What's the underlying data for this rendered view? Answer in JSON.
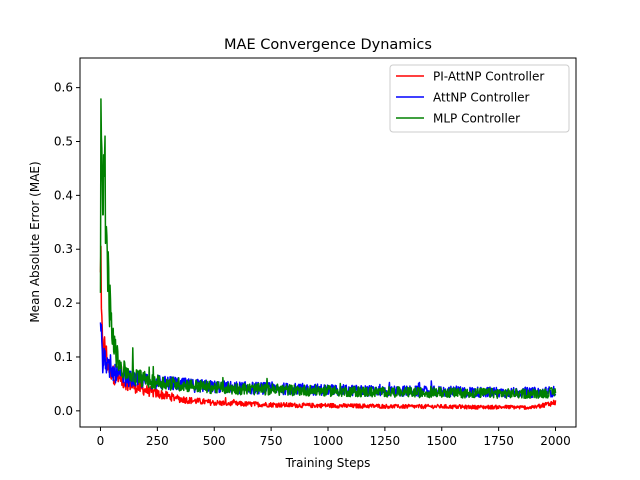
{
  "chart_data": {
    "type": "line",
    "title": "MAE Convergence Dynamics",
    "xlabel": "Training Steps",
    "ylabel": "Mean Absolute Error (MAE)",
    "xlim": [
      -90,
      2090
    ],
    "ylim": [
      -0.03,
      0.655
    ],
    "x_ticks": [
      0,
      250,
      500,
      750,
      1000,
      1250,
      1500,
      1750,
      2000
    ],
    "y_ticks": [
      0.0,
      0.1,
      0.2,
      0.3,
      0.4,
      0.5,
      0.6
    ],
    "x_tick_labels": [
      "0",
      "250",
      "500",
      "750",
      "1000",
      "1250",
      "1500",
      "1750",
      "2000"
    ],
    "y_tick_labels": [
      "0.0",
      "0.1",
      "0.2",
      "0.3",
      "0.4",
      "0.5",
      "0.6"
    ],
    "grid": false,
    "legend_position": "top-right",
    "series": [
      {
        "name": "PI-AttNP Controller",
        "color": "#ff0000",
        "x": [
          0,
          5,
          10,
          20,
          30,
          40,
          60,
          80,
          100,
          150,
          200,
          250,
          300,
          350,
          400,
          450,
          500,
          600,
          700,
          800,
          900,
          1000,
          1100,
          1200,
          1300,
          1400,
          1500,
          1600,
          1700,
          1800,
          1900,
          2000
        ],
        "y": [
          0.24,
          0.16,
          0.11,
          0.12,
          0.09,
          0.08,
          0.065,
          0.06,
          0.055,
          0.045,
          0.038,
          0.032,
          0.027,
          0.022,
          0.019,
          0.017,
          0.015,
          0.013,
          0.012,
          0.011,
          0.01,
          0.01,
          0.009,
          0.009,
          0.008,
          0.008,
          0.008,
          0.007,
          0.007,
          0.007,
          0.006,
          0.016
        ]
      },
      {
        "name": "AttNP Controller",
        "color": "#0000ff",
        "x": [
          0,
          5,
          10,
          20,
          30,
          40,
          60,
          80,
          100,
          150,
          200,
          250,
          300,
          350,
          400,
          450,
          500,
          600,
          700,
          800,
          900,
          1000,
          1100,
          1200,
          1300,
          1400,
          1500,
          1600,
          1700,
          1800,
          1900,
          2000
        ],
        "y": [
          0.2,
          0.12,
          0.085,
          0.1,
          0.08,
          0.075,
          0.07,
          0.065,
          0.062,
          0.058,
          0.055,
          0.053,
          0.051,
          0.049,
          0.047,
          0.046,
          0.045,
          0.043,
          0.042,
          0.041,
          0.04,
          0.039,
          0.038,
          0.037,
          0.037,
          0.036,
          0.036,
          0.035,
          0.035,
          0.034,
          0.034,
          0.036
        ]
      },
      {
        "name": "MLP Controller",
        "color": "#008000",
        "x": [
          0,
          3,
          6,
          10,
          15,
          20,
          25,
          30,
          40,
          50,
          60,
          80,
          100,
          150,
          200,
          250,
          300,
          350,
          400,
          450,
          500,
          600,
          700,
          800,
          900,
          1000,
          1100,
          1200,
          1300,
          1400,
          1500,
          1600,
          1700,
          1800,
          1900,
          2000
        ],
        "y": [
          0.2,
          0.62,
          0.5,
          0.45,
          0.4,
          0.44,
          0.33,
          0.28,
          0.2,
          0.15,
          0.12,
          0.09,
          0.075,
          0.065,
          0.058,
          0.054,
          0.051,
          0.049,
          0.047,
          0.045,
          0.043,
          0.041,
          0.04,
          0.039,
          0.038,
          0.037,
          0.036,
          0.035,
          0.035,
          0.034,
          0.034,
          0.033,
          0.033,
          0.032,
          0.032,
          0.034
        ]
      }
    ]
  }
}
